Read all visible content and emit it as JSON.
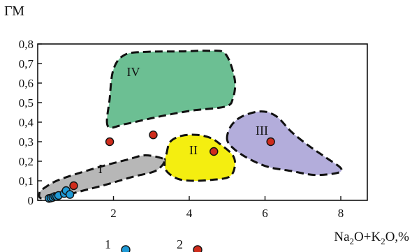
{
  "chart_data": {
    "type": "scatter",
    "title": "",
    "ylabel": "ГМ",
    "xlabel_parts": [
      {
        "text": "Na",
        "sub": false
      },
      {
        "text": "2",
        "sub": true
      },
      {
        "text": "O+K",
        "sub": false
      },
      {
        "text": "2",
        "sub": true
      },
      {
        "text": "O,%",
        "sub": false
      }
    ],
    "xlim": [
      0,
      8.7
    ],
    "ylim": [
      0,
      0.8
    ],
    "x_ticks": [
      {
        "value": 2,
        "label": "2"
      },
      {
        "value": 4,
        "label": "4"
      },
      {
        "value": 6,
        "label": "6"
      },
      {
        "value": 8,
        "label": "8"
      }
    ],
    "y_ticks": [
      {
        "value": 0,
        "label": "0"
      },
      {
        "value": 0.1,
        "label": "0,1"
      },
      {
        "value": 0.2,
        "label": "0,2"
      },
      {
        "value": 0.3,
        "label": "0,3"
      },
      {
        "value": 0.4,
        "label": "0,4"
      },
      {
        "value": 0.5,
        "label": "0,5"
      },
      {
        "value": 0.6,
        "label": "0,6"
      },
      {
        "value": 0.7,
        "label": "0,7"
      },
      {
        "value": 0.8,
        "label": "0,8"
      }
    ],
    "fields": [
      {
        "label": "IV",
        "color": "#6cbf93",
        "label_pos": [
          2.35,
          0.635
        ],
        "polygon": [
          [
            1.85,
            0.38
          ],
          [
            1.9,
            0.52
          ],
          [
            2.0,
            0.67
          ],
          [
            2.3,
            0.745
          ],
          [
            2.9,
            0.76
          ],
          [
            3.8,
            0.762
          ],
          [
            4.5,
            0.765
          ],
          [
            4.95,
            0.75
          ],
          [
            5.2,
            0.62
          ],
          [
            5.15,
            0.52
          ],
          [
            4.95,
            0.48
          ],
          [
            4.1,
            0.46
          ],
          [
            3.5,
            0.44
          ],
          [
            3.0,
            0.42
          ],
          [
            2.3,
            0.39
          ]
        ]
      },
      {
        "label": "III",
        "color": "#b3addb",
        "label_pos": [
          5.75,
          0.335
        ],
        "polygon": [
          [
            5.0,
            0.31
          ],
          [
            5.1,
            0.38
          ],
          [
            5.4,
            0.43
          ],
          [
            5.9,
            0.455
          ],
          [
            6.3,
            0.43
          ],
          [
            6.7,
            0.35
          ],
          [
            7.15,
            0.28
          ],
          [
            7.6,
            0.22
          ],
          [
            8.0,
            0.165
          ],
          [
            7.9,
            0.14
          ],
          [
            7.3,
            0.13
          ],
          [
            6.7,
            0.15
          ],
          [
            6.1,
            0.17
          ],
          [
            5.6,
            0.21
          ],
          [
            5.2,
            0.26
          ]
        ]
      },
      {
        "label": "II",
        "color": "#f4ee10",
        "label_pos": [
          4.0,
          0.235
        ],
        "polygon": [
          [
            3.4,
            0.24
          ],
          [
            3.5,
            0.3
          ],
          [
            3.8,
            0.33
          ],
          [
            4.2,
            0.335
          ],
          [
            4.55,
            0.32
          ],
          [
            4.8,
            0.29
          ],
          [
            5.15,
            0.23
          ],
          [
            5.2,
            0.17
          ],
          [
            5.05,
            0.12
          ],
          [
            4.6,
            0.105
          ],
          [
            4.1,
            0.1
          ],
          [
            3.7,
            0.11
          ],
          [
            3.4,
            0.15
          ],
          [
            3.35,
            0.2
          ]
        ]
      },
      {
        "label": "I",
        "color": "#b7b7b7",
        "label_pos": [
          1.6,
          0.14
        ],
        "polygon": [
          [
            0.1,
            0.01
          ],
          [
            0.05,
            0.04
          ],
          [
            0.15,
            0.06
          ],
          [
            0.5,
            0.1
          ],
          [
            1.1,
            0.14
          ],
          [
            1.8,
            0.18
          ],
          [
            2.4,
            0.21
          ],
          [
            2.8,
            0.23
          ],
          [
            3.2,
            0.22
          ],
          [
            3.35,
            0.2
          ],
          [
            3.1,
            0.15
          ],
          [
            2.5,
            0.12
          ],
          [
            1.8,
            0.08
          ],
          [
            1.2,
            0.05
          ],
          [
            0.6,
            0.02
          ]
        ]
      }
    ],
    "series": [
      {
        "name": "1",
        "color": "#1f9ad6",
        "points": [
          [
            0.3,
            0.01
          ],
          [
            0.35,
            0.012
          ],
          [
            0.4,
            0.015
          ],
          [
            0.45,
            0.02
          ],
          [
            0.5,
            0.02
          ],
          [
            0.55,
            0.025
          ],
          [
            0.7,
            0.035
          ],
          [
            0.75,
            0.05
          ],
          [
            0.85,
            0.03
          ]
        ]
      },
      {
        "name": "2",
        "color": "#cf2c1c",
        "points": [
          [
            0.95,
            0.075
          ],
          [
            1.9,
            0.3
          ],
          [
            3.05,
            0.335
          ],
          [
            4.65,
            0.25
          ],
          [
            6.15,
            0.3
          ]
        ]
      }
    ]
  }
}
